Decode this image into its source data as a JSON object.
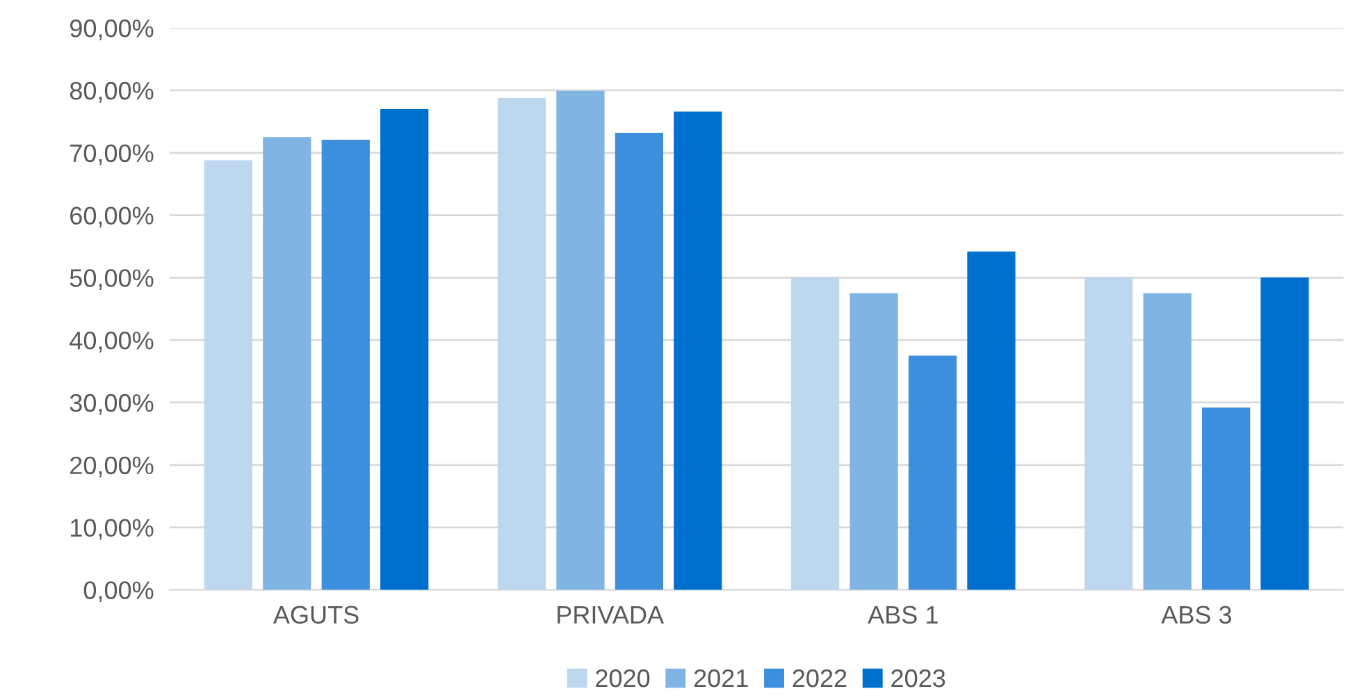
{
  "chart_data": {
    "type": "bar",
    "categories": [
      "AGUTS",
      "PRIVADA",
      "ABS 1",
      "ABS 3"
    ],
    "series": [
      {
        "name": "2020",
        "color": "#bdd7ee",
        "values": [
          68.8,
          78.8,
          50.0,
          50.0
        ]
      },
      {
        "name": "2021",
        "color": "#7fb4e3",
        "values": [
          72.5,
          79.9,
          47.5,
          47.5
        ]
      },
      {
        "name": "2022",
        "color": "#3e8ede",
        "values": [
          72.1,
          73.2,
          37.5,
          29.2
        ]
      },
      {
        "name": "2023",
        "color": "#0070cf",
        "values": [
          77.0,
          76.6,
          54.2,
          50.0
        ]
      }
    ],
    "ylim": [
      0,
      90
    ],
    "yticks": [
      {
        "value": 0,
        "label": "0,00%"
      },
      {
        "value": 10,
        "label": "10,00%"
      },
      {
        "value": 20,
        "label": "20,00%"
      },
      {
        "value": 30,
        "label": "30,00%"
      },
      {
        "value": 40,
        "label": "40,00%"
      },
      {
        "value": 50,
        "label": "50,00%"
      },
      {
        "value": 60,
        "label": "60,00%"
      },
      {
        "value": 70,
        "label": "70,00%"
      },
      {
        "value": 80,
        "label": "80,00%"
      },
      {
        "value": 90,
        "label": "90,00%"
      }
    ],
    "grid": "y",
    "legend": "bottom"
  }
}
